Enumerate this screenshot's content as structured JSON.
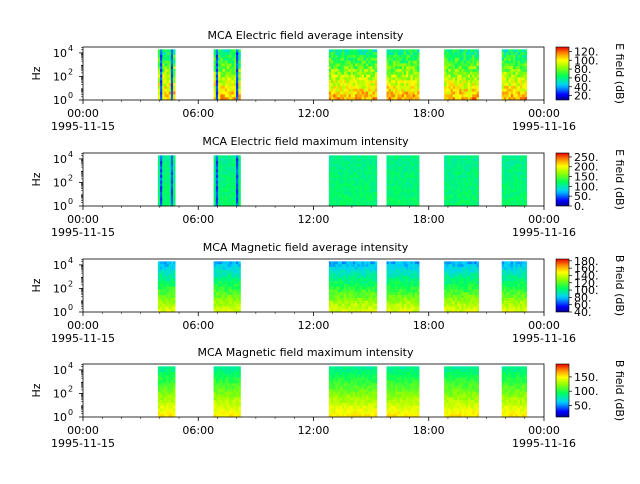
{
  "chart_data": [
    {
      "type": "heatmap",
      "title": "MCA  Electric field average intensity",
      "ylabel": "Hz",
      "colorbar_label": "E field (dB)",
      "colorbar_range": [
        10,
        130
      ],
      "colorbar_ticks": [
        "20.",
        "40.",
        "60.",
        "80.",
        "100.",
        "120."
      ],
      "y_ticks": [
        "10",
        "10",
        "10"
      ],
      "y_tick_exponents": [
        "0",
        "2",
        "4"
      ],
      "ylim_log10": [
        0,
        4.5
      ],
      "x_range_hours": [
        0,
        24
      ],
      "x_tick_labels": [
        "00:00",
        "06:00",
        "12:00",
        "18:00",
        "00:00"
      ],
      "date_labels": [
        "1995-11-15",
        "1995-11-16"
      ],
      "intervals_hours": [
        [
          3.9,
          4.8
        ],
        [
          6.8,
          8.2
        ],
        [
          12.8,
          15.3
        ],
        [
          15.8,
          17.5
        ],
        [
          18.8,
          20.6
        ],
        [
          21.8,
          23.1
        ]
      ],
      "value_profile": "high",
      "spiky": true
    },
    {
      "type": "heatmap",
      "title": "MCA  Electric field maximum intensity",
      "ylabel": "Hz",
      "colorbar_label": "E field (dB)",
      "colorbar_range": [
        0,
        270
      ],
      "colorbar_ticks": [
        "0.",
        "50.",
        "100.",
        "150.",
        "200.",
        "250."
      ],
      "y_ticks": [
        "10",
        "10",
        "10"
      ],
      "y_tick_exponents": [
        "0",
        "2",
        "4"
      ],
      "ylim_log10": [
        0,
        4.5
      ],
      "x_range_hours": [
        0,
        24
      ],
      "x_tick_labels": [
        "00:00",
        "06:00",
        "12:00",
        "18:00",
        "00:00"
      ],
      "date_labels": [
        "1995-11-15",
        "1995-11-16"
      ],
      "intervals_hours": [
        [
          3.9,
          4.8
        ],
        [
          6.8,
          8.2
        ],
        [
          12.8,
          15.3
        ],
        [
          15.8,
          17.5
        ],
        [
          18.8,
          20.6
        ],
        [
          21.8,
          23.1
        ]
      ],
      "value_profile": "flat",
      "spiky": true
    },
    {
      "type": "heatmap",
      "title": "MCA  Magnetic field average intensity",
      "ylabel": "Hz",
      "colorbar_label": "B field (dB)",
      "colorbar_range": [
        40,
        185
      ],
      "colorbar_ticks": [
        "40.",
        "60.",
        "80.",
        "100.",
        "120.",
        "140.",
        "160.",
        "180."
      ],
      "y_ticks": [
        "10",
        "10",
        "10"
      ],
      "y_tick_exponents": [
        "0",
        "2",
        "4"
      ],
      "ylim_log10": [
        0,
        4.5
      ],
      "x_range_hours": [
        0,
        24
      ],
      "x_tick_labels": [
        "00:00",
        "06:00",
        "12:00",
        "18:00",
        "00:00"
      ],
      "date_labels": [
        "1995-11-15",
        "1995-11-16"
      ],
      "intervals_hours": [
        [
          3.9,
          4.8
        ],
        [
          6.8,
          8.2
        ],
        [
          12.8,
          15.3
        ],
        [
          15.8,
          17.5
        ],
        [
          18.8,
          20.6
        ],
        [
          21.8,
          23.1
        ]
      ],
      "value_profile": "banded",
      "spiky": false
    },
    {
      "type": "heatmap",
      "title": "MCA  Magnetic field maximum intensity",
      "ylabel": "Hz",
      "colorbar_label": "B field (dB)",
      "colorbar_range": [
        10,
        195
      ],
      "colorbar_ticks": [
        "50.",
        "100.",
        "150."
      ],
      "y_ticks": [
        "10",
        "10",
        "10"
      ],
      "y_tick_exponents": [
        "0",
        "2",
        "4"
      ],
      "ylim_log10": [
        0,
        4.5
      ],
      "x_range_hours": [
        0,
        24
      ],
      "x_tick_labels": [
        "00:00",
        "06:00",
        "12:00",
        "18:00",
        "00:00"
      ],
      "date_labels": [
        "1995-11-15",
        "1995-11-16"
      ],
      "intervals_hours": [
        [
          3.9,
          4.8
        ],
        [
          6.8,
          8.2
        ],
        [
          12.8,
          15.3
        ],
        [
          15.8,
          17.5
        ],
        [
          18.8,
          20.6
        ],
        [
          21.8,
          23.1
        ]
      ],
      "value_profile": "banded_high",
      "spiky": false
    }
  ]
}
